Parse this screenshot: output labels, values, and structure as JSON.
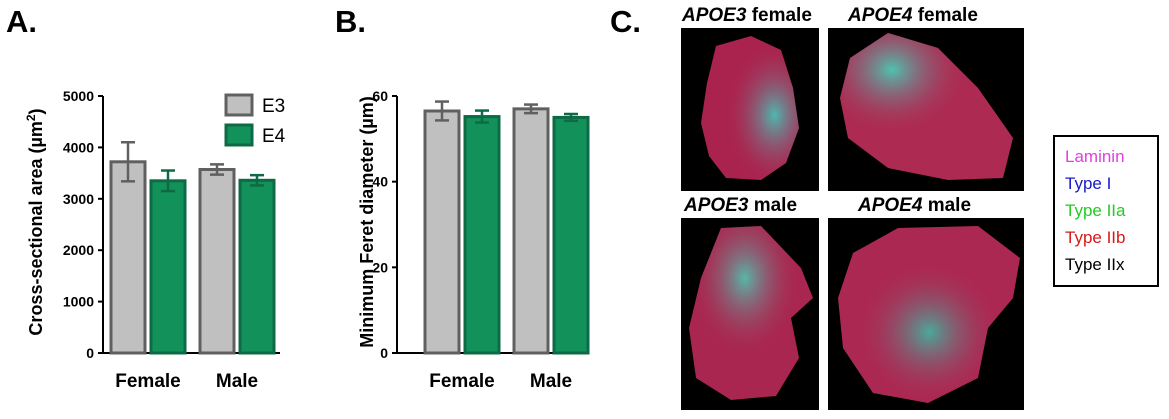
{
  "panel_letters": {
    "a": "A.",
    "b": "B.",
    "c": "C."
  },
  "chart_data": [
    {
      "type": "bar",
      "panel": "A.",
      "categories": [
        "Female",
        "Male"
      ],
      "series": [
        {
          "name": "E3",
          "values": [
            3720,
            3570
          ],
          "errors": [
            380,
            100
          ]
        },
        {
          "name": "E4",
          "values": [
            3350,
            3360
          ],
          "errors": [
            200,
            100
          ]
        }
      ],
      "ylabel": "Cross-sectional area (µm²)",
      "ylabel_main": "Cross-sectional area (µm",
      "ylabel_sup": "2",
      "ylabel_end": ")",
      "ylim": [
        0,
        5000
      ],
      "yticks": [
        "0",
        "1000",
        "2000",
        "3000",
        "4000",
        "5000"
      ],
      "legend": "top-right",
      "grid": false
    },
    {
      "type": "bar",
      "panel": "B.",
      "categories": [
        "Female",
        "Male"
      ],
      "series": [
        {
          "name": "E3",
          "values": [
            56.5,
            57.0
          ],
          "errors": [
            2.2,
            1.0
          ]
        },
        {
          "name": "E4",
          "values": [
            55.2,
            55.0
          ],
          "errors": [
            1.4,
            0.8
          ]
        }
      ],
      "ylabel": "Minimum Feret diameter (µm)",
      "ylim": [
        0,
        60
      ],
      "yticks": [
        "0",
        "20",
        "40",
        "60"
      ],
      "grid": false
    }
  ],
  "colors": {
    "e3_fill": "#c0c0c0",
    "e3_edge": "#606060",
    "e4_fill": "#12915a",
    "e4_edge": "#0e6a44"
  },
  "micrographs": {
    "apoe3_female": {
      "gene": "APOE3",
      "sex": "female"
    },
    "apoe4_female": {
      "gene": "APOE4",
      "sex": "female"
    },
    "apoe3_male": {
      "gene": "APOE3",
      "sex": "male"
    },
    "apoe4_male": {
      "gene": "APOE4",
      "sex": "male"
    }
  },
  "stain_legend": [
    {
      "label": "Laminin",
      "color": "#e040e0"
    },
    {
      "label": "Type I",
      "color": "#1818c8"
    },
    {
      "label": "Type IIa",
      "color": "#22cc22"
    },
    {
      "label": "Type IIb",
      "color": "#d81818"
    },
    {
      "label": "Type IIx",
      "color": "#000000"
    }
  ]
}
